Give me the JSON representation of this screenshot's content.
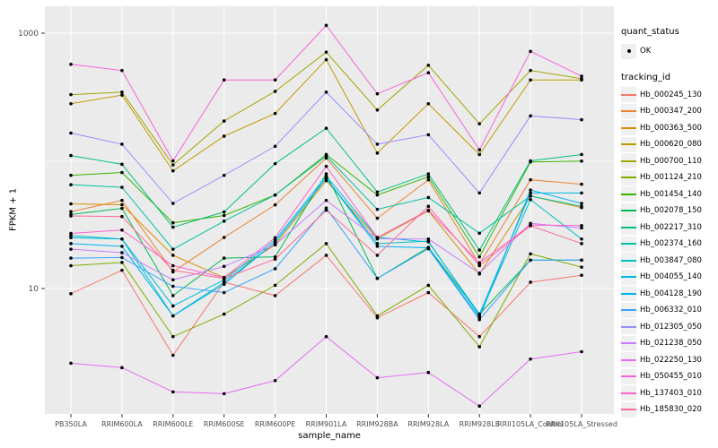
{
  "figure": {
    "background": "#FFFFFF",
    "panel_background": "#EBEBEB",
    "gridline_color": "#FFFFFF",
    "tick_text_color": "#4D4D4D",
    "axis_title_color": "#000000",
    "point_color": "#000000"
  },
  "legend": {
    "quant_status": {
      "title": "quant_status",
      "items": [
        {
          "label": "OK",
          "marker": "black-point"
        }
      ]
    },
    "tracking_id": {
      "title": "tracking_id"
    }
  },
  "chart_data": {
    "type": "line",
    "title": "",
    "xlabel": "sample_name",
    "ylabel": "FPKM + 1",
    "y_scale": "log10",
    "y_ticks": [
      10,
      1000
    ],
    "y_minor_ticks": [
      100
    ],
    "ylim": [
      1.05,
      1600
    ],
    "grid": "on",
    "legend_position": "right",
    "categories": [
      "PB350LA",
      "RRIM600LA",
      "RRIM600LE",
      "RRIM600SE",
      "RRIM600PE",
      "RRIM901LA",
      "RRIM928BA",
      "RRIM928LA",
      "RRIM928LE",
      "RRII105LA_Control",
      "RRII105LA_Stressed"
    ],
    "series": [
      {
        "name": "Hb_000245_130",
        "color": "#F8766D",
        "values": [
          9.1,
          13.9,
          3.0,
          11.2,
          8.8,
          18.2,
          5.9,
          9.3,
          4.2,
          11.2,
          12.7
        ]
      },
      {
        "name": "Hb_000347_200",
        "color": "#EA8331",
        "values": [
          40,
          49,
          13.5,
          25.1,
          45.2,
          105,
          35.5,
          71,
          15.5,
          71,
          65.6
        ]
      },
      {
        "name": "Hb_000363_500",
        "color": "#D89000",
        "values": [
          46,
          45.3,
          18.2,
          12.2,
          22,
          70,
          24.5,
          40.6,
          13.0,
          53,
          43
        ]
      },
      {
        "name": "Hb_000620_080",
        "color": "#C09B00",
        "values": [
          280,
          327,
          83.5,
          156,
          235,
          620,
          115,
          280,
          112,
          430,
          430
        ]
      },
      {
        "name": "Hb_000700_110",
        "color": "#A3A500",
        "values": [
          330,
          345,
          93,
          205,
          350,
          710,
          250,
          560,
          195,
          510,
          440
        ]
      },
      {
        "name": "Hb_001124_210",
        "color": "#7CAE00",
        "values": [
          15.1,
          16.0,
          4.2,
          6.3,
          10.6,
          22.5,
          6.1,
          10.6,
          3.5,
          18.7,
          14.7
        ]
      },
      {
        "name": "Hb_001454_140",
        "color": "#39B600",
        "values": [
          77,
          81,
          32.7,
          37.3,
          54,
          112,
          54,
          75,
          17.7,
          98,
          99.5
        ]
      },
      {
        "name": "Hb_002078_150",
        "color": "#00BB4E",
        "values": [
          38,
          42.4,
          8.8,
          17.3,
          17.7,
          79,
          12.0,
          21,
          6.3,
          16.7,
          16.7
        ]
      },
      {
        "name": "Hb_002217_310",
        "color": "#00BF7D",
        "values": [
          110,
          94,
          30.2,
          39.8,
          95,
          180,
          57,
          79,
          20,
          100,
          112
        ]
      },
      {
        "name": "Hb_002374_160",
        "color": "#00C1A3",
        "values": [
          65,
          62,
          20.3,
          33.7,
          54,
          109,
          41.7,
          51.6,
          27.1,
          53,
          44
        ]
      },
      {
        "name": "Hb_003847_080",
        "color": "#00BFC4",
        "values": [
          26,
          24.4,
          6.1,
          11.2,
          23,
          73,
          22.5,
          23.5,
          6.1,
          49.7,
          24.4
        ]
      },
      {
        "name": "Hb_004055_140",
        "color": "#00BAE0",
        "values": [
          25,
          24.4,
          7.3,
          11.7,
          24,
          76,
          25.1,
          23.2,
          6.3,
          56,
          56
        ]
      },
      {
        "name": "Hb_004128_190",
        "color": "#00B0F6",
        "values": [
          22.5,
          21.4,
          6.1,
          10.8,
          23,
          73,
          21.4,
          20.8,
          5.9,
          59,
          46.4
        ]
      },
      {
        "name": "Hb_006332_010",
        "color": "#35A2FF",
        "values": [
          17.3,
          17.5,
          10.4,
          9.3,
          14.3,
          42.7,
          12.0,
          20.5,
          5.7,
          16.7,
          16.7
        ]
      },
      {
        "name": "Hb_012305_050",
        "color": "#9590FF",
        "values": [
          165,
          135,
          46.4,
          77,
          130,
          345,
          135,
          160,
          56,
          225,
          210
        ]
      },
      {
        "name": "Hb_021238_050",
        "color": "#C77CFF",
        "values": [
          20.3,
          19.1,
          11.7,
          14.9,
          22,
          49,
          24.5,
          24.4,
          13.2,
          32.4,
          29.8
        ]
      },
      {
        "name": "Hb_022250_130",
        "color": "#E76BF3",
        "values": [
          2.6,
          2.4,
          1.55,
          1.5,
          1.9,
          4.2,
          2.0,
          2.2,
          1.2,
          2.8,
          3.2
        ]
      },
      {
        "name": "Hb_050455_010",
        "color": "#FA62DB",
        "values": [
          570,
          510,
          100,
          430,
          430,
          1150,
          335,
          490,
          122,
          720,
          460
        ]
      },
      {
        "name": "Hb_137403_010",
        "color": "#FF61CC",
        "values": [
          27,
          28.7,
          15.1,
          12.2,
          25,
          90.5,
          25.1,
          41,
          15.9,
          31.4,
          31.1
        ]
      },
      {
        "name": "Hb_185830_020",
        "color": "#FF6A98",
        "values": [
          37,
          36.6,
          13.9,
          12.0,
          17.0,
          41,
          18.2,
          44,
          15.1,
          31,
          22.5
        ]
      }
    ]
  }
}
